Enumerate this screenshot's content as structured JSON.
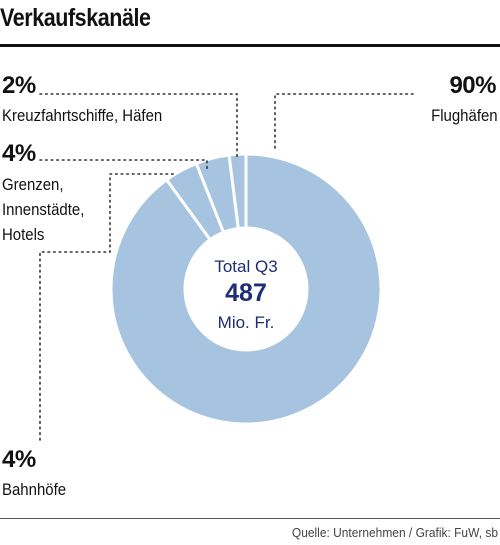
{
  "title": "Verkaufskanäle",
  "source": "Quelle: Unternehmen / Grafik: FuW, sb",
  "center": {
    "line1": "Total Q3",
    "value": "487",
    "line3": "Mio. Fr."
  },
  "colors": {
    "slice": "#a6c3df",
    "separator": "#ffffff",
    "center_value": "#1f2d78",
    "center_text": "#1f2d78",
    "leader": "#333333"
  },
  "chart_data": {
    "type": "pie",
    "style": "donut",
    "title": "Verkaufskanäle",
    "total_label": "Total Q3 487 Mio. Fr.",
    "total": 487,
    "total_unit": "Mio. Fr.",
    "slices": [
      {
        "label": "Flughäfen",
        "value": 90,
        "value_label": "90%"
      },
      {
        "label": "Bahnhöfe",
        "value": 4,
        "value_label": "4%"
      },
      {
        "label": "Grenzen, Innenstädte, Hotels",
        "value": 4,
        "value_label": "4%"
      },
      {
        "label": "Kreuzfahrtschiffe, Häfen",
        "value": 2,
        "value_label": "2%"
      }
    ]
  },
  "labels": {
    "flug": {
      "pct": "90%",
      "lines": [
        "Flughäfen"
      ]
    },
    "kreuz": {
      "pct": "2%",
      "lines": [
        "Kreuzfahrtschiffe, Häfen"
      ]
    },
    "grenz": {
      "pct": "4%",
      "lines": [
        "Grenzen,",
        "Innenstädte,",
        "Hotels"
      ]
    },
    "bahn": {
      "pct": "4%",
      "lines": [
        "Bahnhöfe"
      ]
    }
  }
}
